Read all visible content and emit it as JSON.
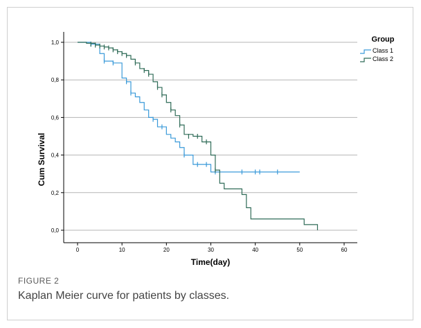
{
  "chart_data": {
    "type": "line",
    "subtype": "kaplan-meier-step",
    "xlabel": "Time(day)",
    "ylabel": "Cum Survival",
    "xlim": [
      0,
      60
    ],
    "ylim": [
      0,
      1
    ],
    "x_ticks": [
      "0",
      "10",
      "20",
      "30",
      "40",
      "50",
      "60"
    ],
    "y_ticks": [
      "0,0",
      "0,2",
      "0,4",
      "0,6",
      "0,8",
      "1,0"
    ],
    "grid": "horizontal",
    "legend": {
      "title": "Group",
      "placement": "top-right"
    },
    "series": [
      {
        "name": "Class 1",
        "color": "#3a9ad9",
        "steps": [
          [
            0,
            1.0
          ],
          [
            3,
            0.99
          ],
          [
            5,
            0.94
          ],
          [
            6,
            0.9
          ],
          [
            8,
            0.89
          ],
          [
            10,
            0.81
          ],
          [
            11,
            0.79
          ],
          [
            12,
            0.73
          ],
          [
            13,
            0.71
          ],
          [
            14,
            0.68
          ],
          [
            15,
            0.64
          ],
          [
            16,
            0.6
          ],
          [
            17,
            0.59
          ],
          [
            18,
            0.55
          ],
          [
            20,
            0.51
          ],
          [
            21,
            0.49
          ],
          [
            22,
            0.47
          ],
          [
            23,
            0.44
          ],
          [
            24,
            0.4
          ],
          [
            26,
            0.35
          ],
          [
            30,
            0.31
          ],
          [
            50,
            0.31
          ]
        ],
        "censored": [
          [
            3,
            0.99
          ],
          [
            6,
            0.9
          ],
          [
            8,
            0.89
          ],
          [
            11,
            0.79
          ],
          [
            12,
            0.73
          ],
          [
            17,
            0.59
          ],
          [
            19,
            0.55
          ],
          [
            24,
            0.4
          ],
          [
            27,
            0.35
          ],
          [
            29,
            0.35
          ],
          [
            31,
            0.31
          ],
          [
            37,
            0.31
          ],
          [
            40,
            0.31
          ],
          [
            41,
            0.31
          ],
          [
            45,
            0.31
          ]
        ]
      },
      {
        "name": "Class 2",
        "color": "#2f6b57",
        "steps": [
          [
            0,
            1.0
          ],
          [
            2,
            0.995
          ],
          [
            4,
            0.985
          ],
          [
            5,
            0.98
          ],
          [
            6,
            0.975
          ],
          [
            7,
            0.97
          ],
          [
            8,
            0.96
          ],
          [
            9,
            0.95
          ],
          [
            10,
            0.94
          ],
          [
            11,
            0.93
          ],
          [
            12,
            0.91
          ],
          [
            13,
            0.89
          ],
          [
            14,
            0.86
          ],
          [
            15,
            0.85
          ],
          [
            16,
            0.83
          ],
          [
            17,
            0.79
          ],
          [
            18,
            0.76
          ],
          [
            19,
            0.72
          ],
          [
            20,
            0.68
          ],
          [
            21,
            0.64
          ],
          [
            22,
            0.61
          ],
          [
            23,
            0.56
          ],
          [
            24,
            0.51
          ],
          [
            26,
            0.5
          ],
          [
            28,
            0.47
          ],
          [
            30,
            0.4
          ],
          [
            31,
            0.32
          ],
          [
            32,
            0.25
          ],
          [
            33,
            0.22
          ],
          [
            37,
            0.19
          ],
          [
            38,
            0.12
          ],
          [
            39,
            0.06
          ],
          [
            51,
            0.03
          ],
          [
            54,
            0.0
          ]
        ],
        "censored": [
          [
            3,
            0.99
          ],
          [
            4,
            0.985
          ],
          [
            5,
            0.98
          ],
          [
            6,
            0.975
          ],
          [
            7,
            0.97
          ],
          [
            8,
            0.96
          ],
          [
            9,
            0.95
          ],
          [
            10,
            0.94
          ],
          [
            11,
            0.93
          ],
          [
            13,
            0.89
          ],
          [
            15,
            0.85
          ],
          [
            16,
            0.83
          ],
          [
            18,
            0.76
          ],
          [
            19,
            0.72
          ],
          [
            21,
            0.64
          ],
          [
            23,
            0.56
          ],
          [
            25,
            0.5
          ],
          [
            27,
            0.5
          ],
          [
            29,
            0.47
          ],
          [
            31,
            0.32
          ]
        ]
      }
    ]
  },
  "caption": {
    "label": "FIGURE 2",
    "text": "Kaplan Meier curve for patients by classes."
  }
}
